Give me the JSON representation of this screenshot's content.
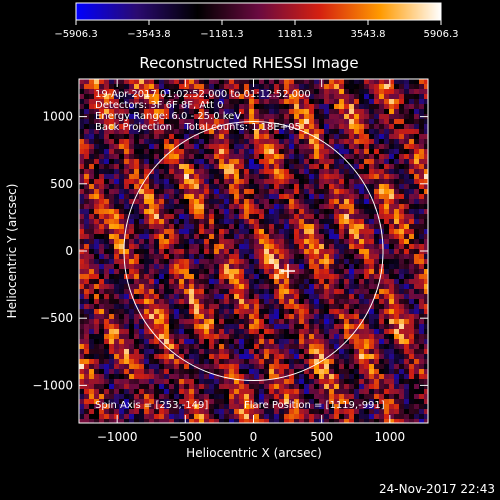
{
  "chart_data": {
    "type": "heatmap",
    "title": "Reconstructed RHESSI Image",
    "xlabel": "Heliocentric X (arcsec)",
    "ylabel": "Heliocentric Y (arcsec)",
    "xlim": [
      -1280,
      1280
    ],
    "ylim": [
      -1280,
      1280
    ],
    "xticks": [
      -1000,
      -500,
      0,
      500,
      1000
    ],
    "yticks": [
      -1000,
      -500,
      0,
      500,
      1000
    ],
    "xtick_labels": [
      "−1000",
      "−500",
      "0",
      "500",
      "1000"
    ],
    "ytick_labels": [
      "−1000",
      "−500",
      "0",
      "500",
      "1000"
    ],
    "colorbar": {
      "range": [
        -5906.3,
        5906.3
      ],
      "ticks": [
        -5906.3,
        -3543.8,
        -1181.3,
        1181.3,
        3543.8,
        5906.3
      ],
      "tick_labels": [
        "−5906.3",
        "−3543.8",
        "−1181.3",
        "1181.3",
        "3543.8",
        "5906.3"
      ],
      "colormap": [
        "#0000ff",
        "#2a0a70",
        "#000000",
        "#6a0a40",
        "#d42010",
        "#ff9a00",
        "#ffffff"
      ]
    },
    "annotations": [
      "19-Apr-2017 01:02:52.000 to 01:12:52.000",
      "Detectors: 3F 6F 8F, Att 0",
      "Energy Range: 6.0 - 25.0 keV",
      "Back Projection    Total counts: 1.18E+05"
    ],
    "spin_axis_text": "Spin Axis = [253,-149]",
    "flare_position_text": "Flare Position = [1119,-991]",
    "solar_disk": {
      "center": [
        0,
        0
      ],
      "radius": 950
    },
    "marker": {
      "x": 253,
      "y": -149,
      "symbol": "plus"
    },
    "grid": false
  },
  "footer": {
    "timestamp": "24-Nov-2017 22:43"
  }
}
